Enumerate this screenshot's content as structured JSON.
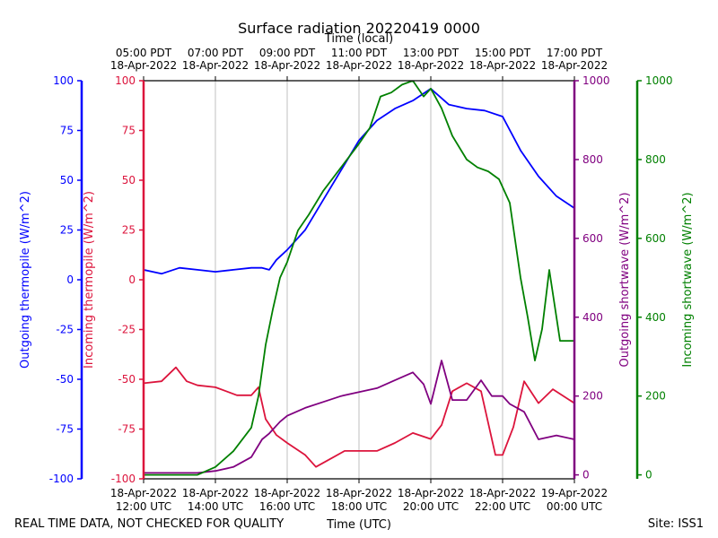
{
  "chart_data": {
    "type": "line",
    "title": "Surface radiation 20220419 0000",
    "top_axis_label": "Time (local)",
    "xlabel": "Time (UTC)",
    "footer_left": "REAL TIME DATA, NOT CHECKED FOR QUALITY",
    "footer_right": "Site: ISS1",
    "x_unit": "hours UTC on 18-Apr-2022",
    "xlim": [
      12,
      24
    ],
    "x_ticks_utc": [
      {
        "x": 12,
        "date": "18-Apr-2022",
        "time": "12:00 UTC"
      },
      {
        "x": 14,
        "date": "18-Apr-2022",
        "time": "14:00 UTC"
      },
      {
        "x": 16,
        "date": "18-Apr-2022",
        "time": "16:00 UTC"
      },
      {
        "x": 18,
        "date": "18-Apr-2022",
        "time": "18:00 UTC"
      },
      {
        "x": 20,
        "date": "18-Apr-2022",
        "time": "20:00 UTC"
      },
      {
        "x": 22,
        "date": "18-Apr-2022",
        "time": "22:00 UTC"
      },
      {
        "x": 24,
        "date": "19-Apr-2022",
        "time": "00:00 UTC"
      }
    ],
    "x_ticks_local": [
      {
        "x": 12,
        "time": "05:00 PDT",
        "date": "18-Apr-2022"
      },
      {
        "x": 14,
        "time": "07:00 PDT",
        "date": "18-Apr-2022"
      },
      {
        "x": 16,
        "time": "09:00 PDT",
        "date": "18-Apr-2022"
      },
      {
        "x": 18,
        "time": "11:00 PDT",
        "date": "18-Apr-2022"
      },
      {
        "x": 20,
        "time": "13:00 PDT",
        "date": "18-Apr-2022"
      },
      {
        "x": 22,
        "time": "15:00 PDT",
        "date": "18-Apr-2022"
      },
      {
        "x": 24,
        "time": "17:00 PDT",
        "date": "18-Apr-2022"
      }
    ],
    "axes": [
      {
        "id": "out_thermo",
        "label": "Outgoing thermopile (W/m^2)",
        "color": "#0000ff",
        "ylim": [
          -100,
          100
        ],
        "ticks": [
          100,
          75,
          50,
          25,
          0,
          -25,
          -50,
          -75,
          -100
        ],
        "side": "left-outer"
      },
      {
        "id": "in_thermo",
        "label": "Incoming thermopile (W/m^2)",
        "color": "#dc143c",
        "ylim": [
          -100,
          100
        ],
        "ticks": [
          100,
          75,
          50,
          25,
          0,
          -25,
          -50,
          -75,
          -100
        ],
        "side": "left-inner"
      },
      {
        "id": "out_sw",
        "label": "Outgoing shortwave (W/m^2)",
        "color": "#800080",
        "ylim": [
          -10,
          1000
        ],
        "ticks": [
          1000,
          800,
          600,
          400,
          200,
          0
        ],
        "side": "right-inner"
      },
      {
        "id": "in_sw",
        "label": "Incoming shortwave (W/m^2)",
        "color": "#008000",
        "ylim": [
          -10,
          1000
        ],
        "ticks": [
          1000,
          800,
          600,
          400,
          200,
          0
        ],
        "side": "right-outer"
      }
    ],
    "series": [
      {
        "name": "Outgoing thermopile",
        "axis": "out_thermo",
        "color": "#0000ff",
        "x": [
          12.0,
          12.5,
          13.0,
          13.5,
          14.0,
          14.5,
          15.0,
          15.3,
          15.5,
          15.7,
          16.0,
          16.5,
          17.0,
          17.5,
          18.0,
          18.5,
          19.0,
          19.5,
          20.0,
          20.5,
          21.0,
          21.5,
          22.0,
          22.5,
          23.0,
          23.5,
          24.0
        ],
        "y": [
          5,
          3,
          6,
          5,
          4,
          5,
          6,
          6,
          5,
          10,
          15,
          25,
          40,
          55,
          70,
          80,
          86,
          90,
          96,
          88,
          86,
          85,
          82,
          65,
          52,
          42,
          36
        ]
      },
      {
        "name": "Incoming thermopile",
        "axis": "in_thermo",
        "color": "#dc143c",
        "x": [
          12.0,
          12.5,
          12.9,
          13.2,
          13.5,
          14.0,
          14.3,
          14.6,
          15.0,
          15.2,
          15.4,
          15.7,
          16.0,
          16.5,
          16.8,
          17.2,
          17.6,
          18.0,
          18.5,
          19.0,
          19.5,
          20.0,
          20.3,
          20.6,
          21.0,
          21.4,
          21.8,
          22.0,
          22.3,
          22.6,
          23.0,
          23.4,
          24.0
        ],
        "y": [
          -52,
          -51,
          -44,
          -51,
          -53,
          -54,
          -56,
          -58,
          -58,
          -54,
          -70,
          -78,
          -82,
          -88,
          -94,
          -90,
          -86,
          -86,
          -86,
          -82,
          -77,
          -80,
          -73,
          -56,
          -52,
          -56,
          -88,
          -88,
          -74,
          -51,
          -62,
          -55,
          -62
        ]
      },
      {
        "name": "Outgoing shortwave",
        "axis": "out_sw",
        "color": "#800080",
        "x": [
          12.0,
          13.0,
          13.5,
          14.0,
          14.5,
          15.0,
          15.3,
          15.5,
          15.8,
          16.0,
          16.5,
          17.0,
          17.5,
          18.0,
          18.5,
          19.0,
          19.5,
          19.8,
          20.0,
          20.3,
          20.6,
          21.0,
          21.4,
          21.7,
          22.0,
          22.2,
          22.6,
          23.0,
          23.5,
          24.0
        ],
        "y": [
          5,
          5,
          5,
          10,
          20,
          45,
          90,
          105,
          135,
          150,
          170,
          185,
          200,
          210,
          220,
          240,
          260,
          230,
          180,
          290,
          190,
          190,
          240,
          200,
          200,
          180,
          160,
          90,
          100,
          90
        ]
      },
      {
        "name": "Incoming shortwave",
        "axis": "in_sw",
        "color": "#008000",
        "x": [
          12.0,
          13.0,
          13.5,
          14.0,
          14.5,
          15.0,
          15.2,
          15.4,
          15.6,
          15.8,
          16.0,
          16.3,
          16.6,
          17.0,
          17.5,
          18.0,
          18.3,
          18.6,
          18.9,
          19.2,
          19.5,
          19.8,
          20.0,
          20.3,
          20.6,
          21.0,
          21.3,
          21.6,
          21.9,
          22.2,
          22.5,
          22.7,
          22.9,
          23.1,
          23.3,
          23.6,
          24.0
        ],
        "y": [
          0,
          0,
          0,
          20,
          60,
          120,
          200,
          330,
          420,
          500,
          540,
          620,
          660,
          720,
          780,
          840,
          880,
          960,
          970,
          990,
          1000,
          960,
          980,
          930,
          860,
          800,
          780,
          770,
          750,
          690,
          500,
          400,
          290,
          370,
          520,
          340,
          340
        ]
      }
    ]
  }
}
